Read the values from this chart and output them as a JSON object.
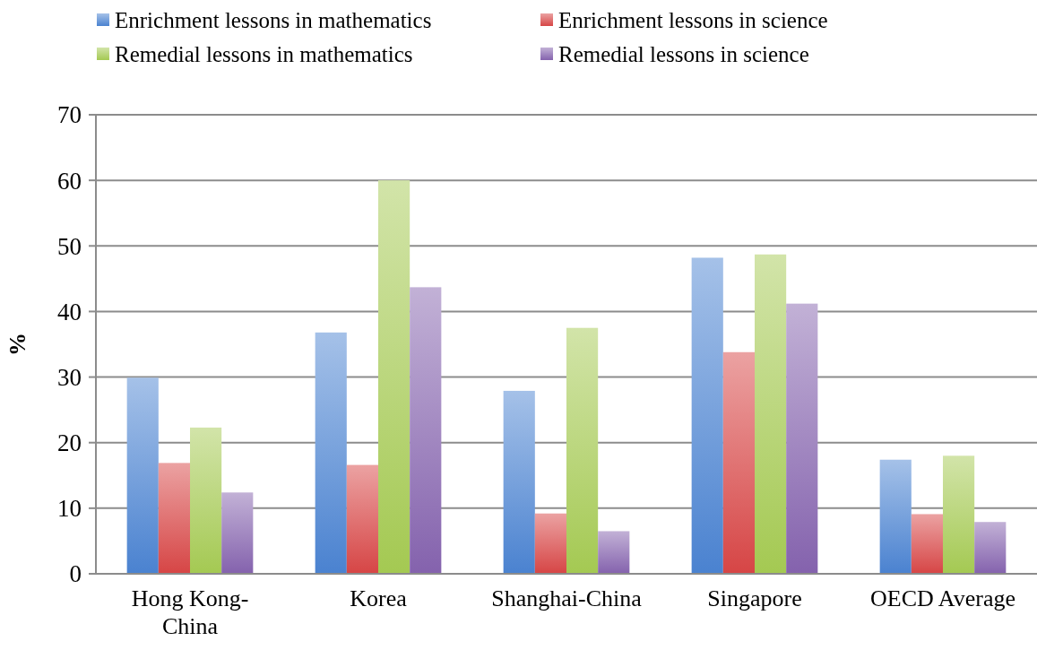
{
  "chart_data": {
    "type": "bar",
    "ylabel": "%",
    "categories": [
      "Hong Kong-China",
      "Korea",
      "Shanghai-China",
      "Singapore",
      "OECD Average"
    ],
    "series": [
      {
        "name": "Enrichment lessons in mathematics",
        "color": "#4a82d0",
        "values": [
          29.9,
          36.8,
          27.9,
          48.2,
          17.4
        ]
      },
      {
        "name": "Enrichment lessons in science",
        "color": "#d64545",
        "values": [
          16.9,
          16.6,
          9.2,
          33.8,
          9.1
        ]
      },
      {
        "name": "Remedial lessons in mathematics",
        "color": "#a4c952",
        "values": [
          22.3,
          60,
          37.5,
          48.7,
          18.0
        ]
      },
      {
        "name": "Remedial lessons in science",
        "color": "#8462ad",
        "values": [
          12.4,
          43.7,
          6.5,
          41.2,
          7.9
        ]
      }
    ],
    "ylim": [
      0,
      70
    ],
    "yticks": [
      0,
      10,
      20,
      30,
      40,
      50,
      60,
      70
    ],
    "grid": "y",
    "legend": "top"
  }
}
